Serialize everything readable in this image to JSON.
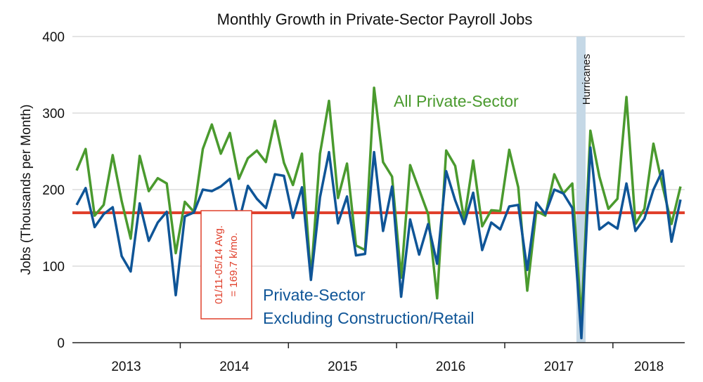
{
  "chart_data": {
    "type": "line",
    "title": "Monthly Growth in Private-Sector Payroll Jobs",
    "ylabel": "Jobs (Thousands per Month)",
    "xlabel": "",
    "ylim": [
      0,
      400
    ],
    "yticks": [
      "0",
      "100",
      "200",
      "300",
      "400"
    ],
    "grid": true,
    "year_labels": [
      "2013",
      "2014",
      "2015",
      "2016",
      "2017",
      "2018"
    ],
    "series": [
      {
        "name": "All Private-Sector",
        "color": "#4a9a2e",
        "values": [
          225,
          253,
          166,
          180,
          245,
          185,
          136,
          244,
          198,
          215,
          208,
          117,
          184,
          171,
          253,
          285,
          247,
          274,
          214,
          241,
          251,
          236,
          290,
          235,
          206,
          247,
          85,
          247,
          316,
          189,
          234,
          127,
          121,
          333,
          236,
          217,
          85,
          232,
          200,
          168,
          58,
          251,
          231,
          160,
          238,
          152,
          173,
          172,
          252,
          203,
          68,
          172,
          166,
          220,
          195,
          208,
          30,
          277,
          217,
          175,
          188,
          321,
          155,
          175,
          260,
          205,
          155,
          204
        ]
      },
      {
        "name": "Private-Sector Excluding Construction/Retail",
        "color": "#0f5597",
        "values": [
          180,
          202,
          151,
          168,
          177,
          113,
          93,
          182,
          133,
          157,
          171,
          62,
          165,
          170,
          200,
          198,
          204,
          214,
          158,
          205,
          188,
          176,
          220,
          218,
          163,
          203,
          82,
          190,
          249,
          156,
          191,
          114,
          116,
          249,
          146,
          204,
          60,
          161,
          115,
          155,
          103,
          224,
          186,
          155,
          196,
          121,
          157,
          148,
          178,
          180,
          95,
          183,
          168,
          200,
          195,
          176,
          6,
          255,
          148,
          157,
          149,
          208,
          146,
          162,
          200,
          225,
          132,
          187
        ]
      }
    ],
    "reference_line": {
      "value": 169.7,
      "color": "#e0402c",
      "label_lines": [
        "01/11-05/14 Avg.",
        "= 169.7 k/mo."
      ]
    },
    "shaded_region": {
      "label": "Hurricanes",
      "color": "#c5d8e6"
    },
    "annotations": {
      "all_private": "All Private-Sector",
      "excluding_line1": "Private-Sector",
      "excluding_line2": "Excluding Construction/Retail"
    }
  }
}
